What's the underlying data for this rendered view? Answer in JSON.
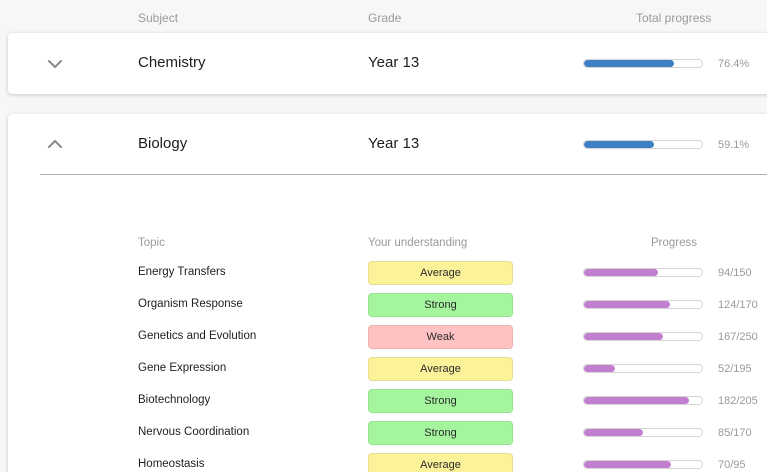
{
  "headers": {
    "subject": "Subject",
    "grade": "Grade",
    "total_progress": "Total progress"
  },
  "colors": {
    "blue": "#3d80c4",
    "purple": "#c27fd0",
    "average": "#fbf29a",
    "strong": "#a4f59e",
    "weak": "#ffc2c2"
  },
  "subjects": [
    {
      "name": "Chemistry",
      "grade": "Year 13",
      "progress": 0.764,
      "progress_label": "76.4%",
      "expanded": false,
      "chevron": "chevron-down-icon"
    },
    {
      "name": "Biology",
      "grade": "Year 13",
      "progress": 0.591,
      "progress_label": "59.1%",
      "expanded": true,
      "chevron": "chevron-up-icon"
    }
  ],
  "topic_headers": {
    "topic": "Topic",
    "understanding": "Your understanding",
    "progress": "Progress"
  },
  "topics": [
    {
      "name": "Energy Transfers",
      "understanding": "Average",
      "done": 94,
      "total": 150,
      "label": "94/150"
    },
    {
      "name": "Organism Response",
      "understanding": "Strong",
      "done": 124,
      "total": 170,
      "label": "124/170"
    },
    {
      "name": "Genetics and Evolution",
      "understanding": "Weak",
      "done": 167,
      "total": 250,
      "label": "167/250"
    },
    {
      "name": "Gene Expression",
      "understanding": "Average",
      "done": 52,
      "total": 195,
      "label": "52/195"
    },
    {
      "name": "Biotechnology",
      "understanding": "Strong",
      "done": 182,
      "total": 205,
      "label": "182/205"
    },
    {
      "name": "Nervous Coordination",
      "understanding": "Strong",
      "done": 85,
      "total": 170,
      "label": "85/170"
    },
    {
      "name": "Homeostasis",
      "understanding": "Average",
      "done": 70,
      "total": 95,
      "label": "70/95"
    }
  ]
}
